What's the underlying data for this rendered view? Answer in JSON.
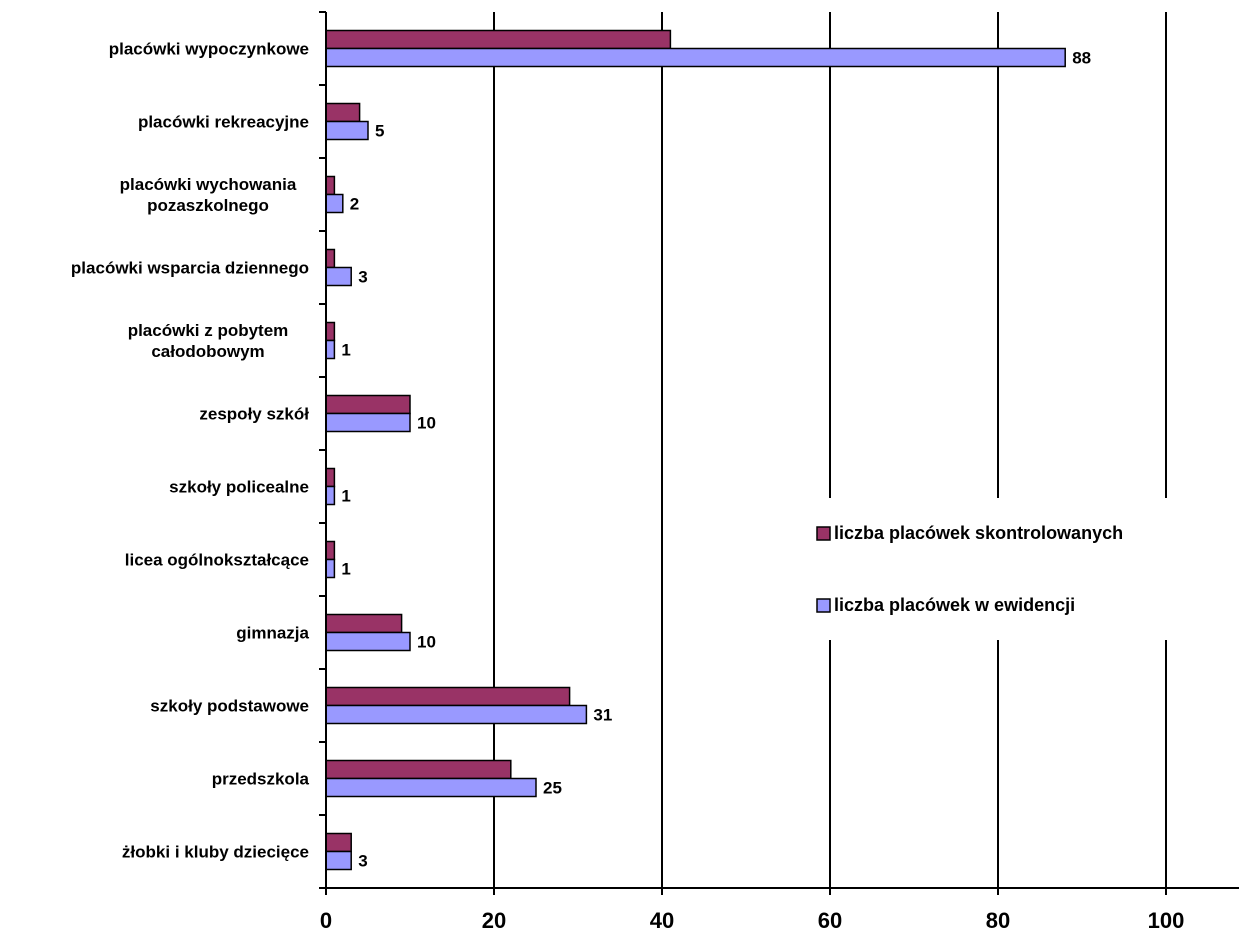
{
  "chart_data": {
    "type": "bar",
    "orientation": "horizontal",
    "categories": [
      [
        "placówki wypoczynkowe"
      ],
      [
        "placówki rekreacyjne"
      ],
      [
        "placówki wychowania",
        "pozaszkolnego"
      ],
      [
        "placówki wsparcia dziennego"
      ],
      [
        "placówki z pobytem",
        "całodobowym"
      ],
      [
        "zespoły szkół"
      ],
      [
        "szkoły policealne"
      ],
      [
        "licea ogólnokształcące"
      ],
      [
        "gimnazja"
      ],
      [
        "szkoły podstawowe"
      ],
      [
        "przedszkola"
      ],
      [
        "żłobki i kluby dziecięce"
      ]
    ],
    "series": [
      {
        "name": "liczba placówek skontrolowanych",
        "color": "#993366",
        "values": [
          41,
          4,
          1,
          1,
          1,
          10,
          1,
          1,
          9,
          29,
          22,
          3
        ],
        "show_labels": false
      },
      {
        "name": "liczba placówek w ewidencji",
        "color": "#9999FF",
        "values": [
          88,
          5,
          2,
          3,
          1,
          10,
          1,
          1,
          10,
          31,
          25,
          3
        ],
        "show_labels": true
      }
    ],
    "xlim": [
      0,
      110
    ],
    "xticks": [
      0,
      20,
      40,
      60,
      80,
      100
    ],
    "grid": "vertical major gridlines",
    "legend": "right",
    "title": "",
    "xlabel": "",
    "ylabel": ""
  }
}
